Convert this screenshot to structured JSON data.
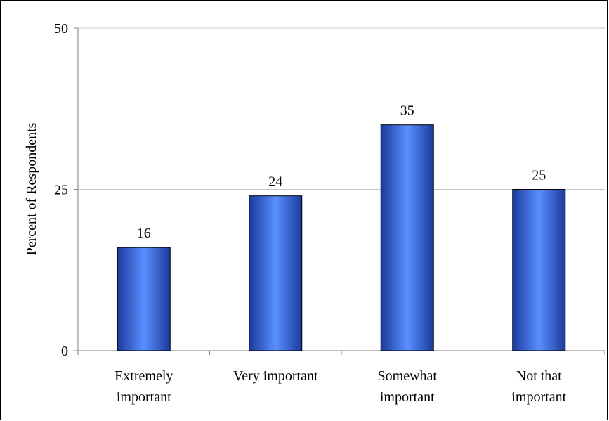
{
  "chart_data": {
    "type": "bar",
    "title": "",
    "xlabel": "",
    "ylabel": "Percent of Respondents",
    "categories": [
      [
        "Extremely",
        "important"
      ],
      [
        "Very important"
      ],
      [
        "Somewhat",
        "important"
      ],
      [
        "Not that",
        "important"
      ]
    ],
    "values": [
      16,
      24,
      35,
      25
    ],
    "data_labels": [
      "16",
      "24",
      "35",
      "25"
    ],
    "ylim": [
      0,
      50
    ],
    "yticks": [
      0,
      25,
      50
    ],
    "ytick_labels": [
      "0",
      "25",
      "50"
    ],
    "grid": true,
    "legend": "none",
    "colors": {
      "bar_dark": "#1a3a9c",
      "bar_light": "#5b8fff",
      "bar_border": "#000000",
      "grid": "#c8c8c8",
      "axis": "#808080"
    }
  }
}
